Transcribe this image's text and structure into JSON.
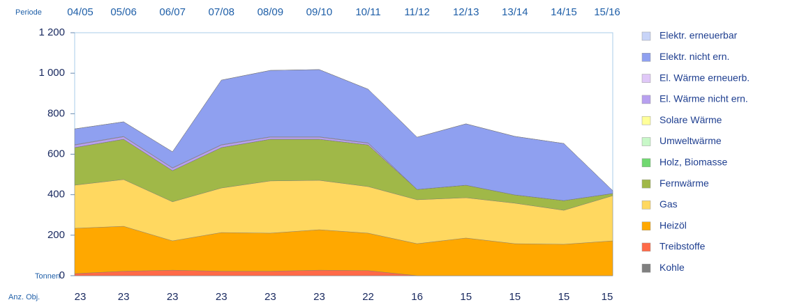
{
  "chart_data": {
    "type": "stacked_area",
    "period_label": "Periode",
    "unit_label": "Tonnen",
    "count_label": "Anz. Obj.",
    "categories": [
      "04/05",
      "05/06",
      "06/07",
      "07/08",
      "08/09",
      "09/10",
      "10/11",
      "11/12",
      "12/13",
      "13/14",
      "14/15",
      "15/16"
    ],
    "counts": [
      "23",
      "23",
      "23",
      "23",
      "23",
      "23",
      "22",
      "16",
      "15",
      "15",
      "15",
      "15"
    ],
    "ylim": [
      0,
      1200
    ],
    "yticks": [
      0,
      200,
      400,
      600,
      800,
      {
        "value": 1000,
        "label": "1 000"
      },
      {
        "value": 1200,
        "label": "1 200"
      }
    ],
    "grid": false,
    "series": [
      {
        "name": "Kohle",
        "color": "#808080",
        "values": [
          0,
          0,
          0,
          0,
          0,
          0,
          0,
          0,
          0,
          0,
          0,
          0
        ]
      },
      {
        "name": "Treibstoffe",
        "color": "#ff6a48",
        "values": [
          10,
          22,
          27,
          22,
          22,
          27,
          25,
          0,
          0,
          0,
          0,
          0
        ]
      },
      {
        "name": "Heizöl",
        "color": "#ffa800",
        "values": [
          224,
          222,
          145,
          191,
          188,
          200,
          185,
          158,
          186,
          158,
          155,
          172
        ]
      },
      {
        "name": "Gas",
        "color": "#ffd860",
        "values": [
          213,
          231,
          193,
          220,
          258,
          244,
          230,
          217,
          199,
          200,
          168,
          223
        ]
      },
      {
        "name": "Fernwärme",
        "color": "#a0b848",
        "values": [
          186,
          199,
          154,
          200,
          206,
          203,
          206,
          51,
          62,
          41,
          48,
          11
        ]
      },
      {
        "name": "Holz, Biomasse",
        "color": "#70d870",
        "values": [
          0,
          0,
          0,
          0,
          0,
          0,
          0,
          0,
          0,
          0,
          0,
          0
        ]
      },
      {
        "name": "Umweltwärme",
        "color": "#c8f8c8",
        "values": [
          0,
          0,
          0,
          0,
          0,
          0,
          0,
          0,
          0,
          0,
          0,
          0
        ]
      },
      {
        "name": "Solare Wärme",
        "color": "#ffff99",
        "values": [
          0,
          0,
          0,
          0,
          0,
          0,
          0,
          0,
          0,
          0,
          0,
          0
        ]
      },
      {
        "name": "El. Wärme nicht ern.",
        "color": "#b8a0f0",
        "values": [
          12,
          12,
          12,
          12,
          10,
          10,
          8,
          0,
          0,
          0,
          0,
          0
        ]
      },
      {
        "name": "El. Wärme erneuerb.",
        "color": "#e0c8f8",
        "values": [
          2,
          2,
          2,
          2,
          2,
          2,
          2,
          0,
          0,
          0,
          0,
          0
        ]
      },
      {
        "name": "Elektr. nicht ern.",
        "color": "#8fa0f0",
        "values": [
          78,
          72,
          79,
          319,
          328,
          332,
          265,
          258,
          303,
          289,
          282,
          14
        ]
      },
      {
        "name": "Elektr. erneuerbar",
        "color": "#c8d4f8",
        "values": [
          0,
          0,
          0,
          0,
          0,
          0,
          0,
          0,
          0,
          0,
          0,
          0
        ]
      }
    ]
  }
}
